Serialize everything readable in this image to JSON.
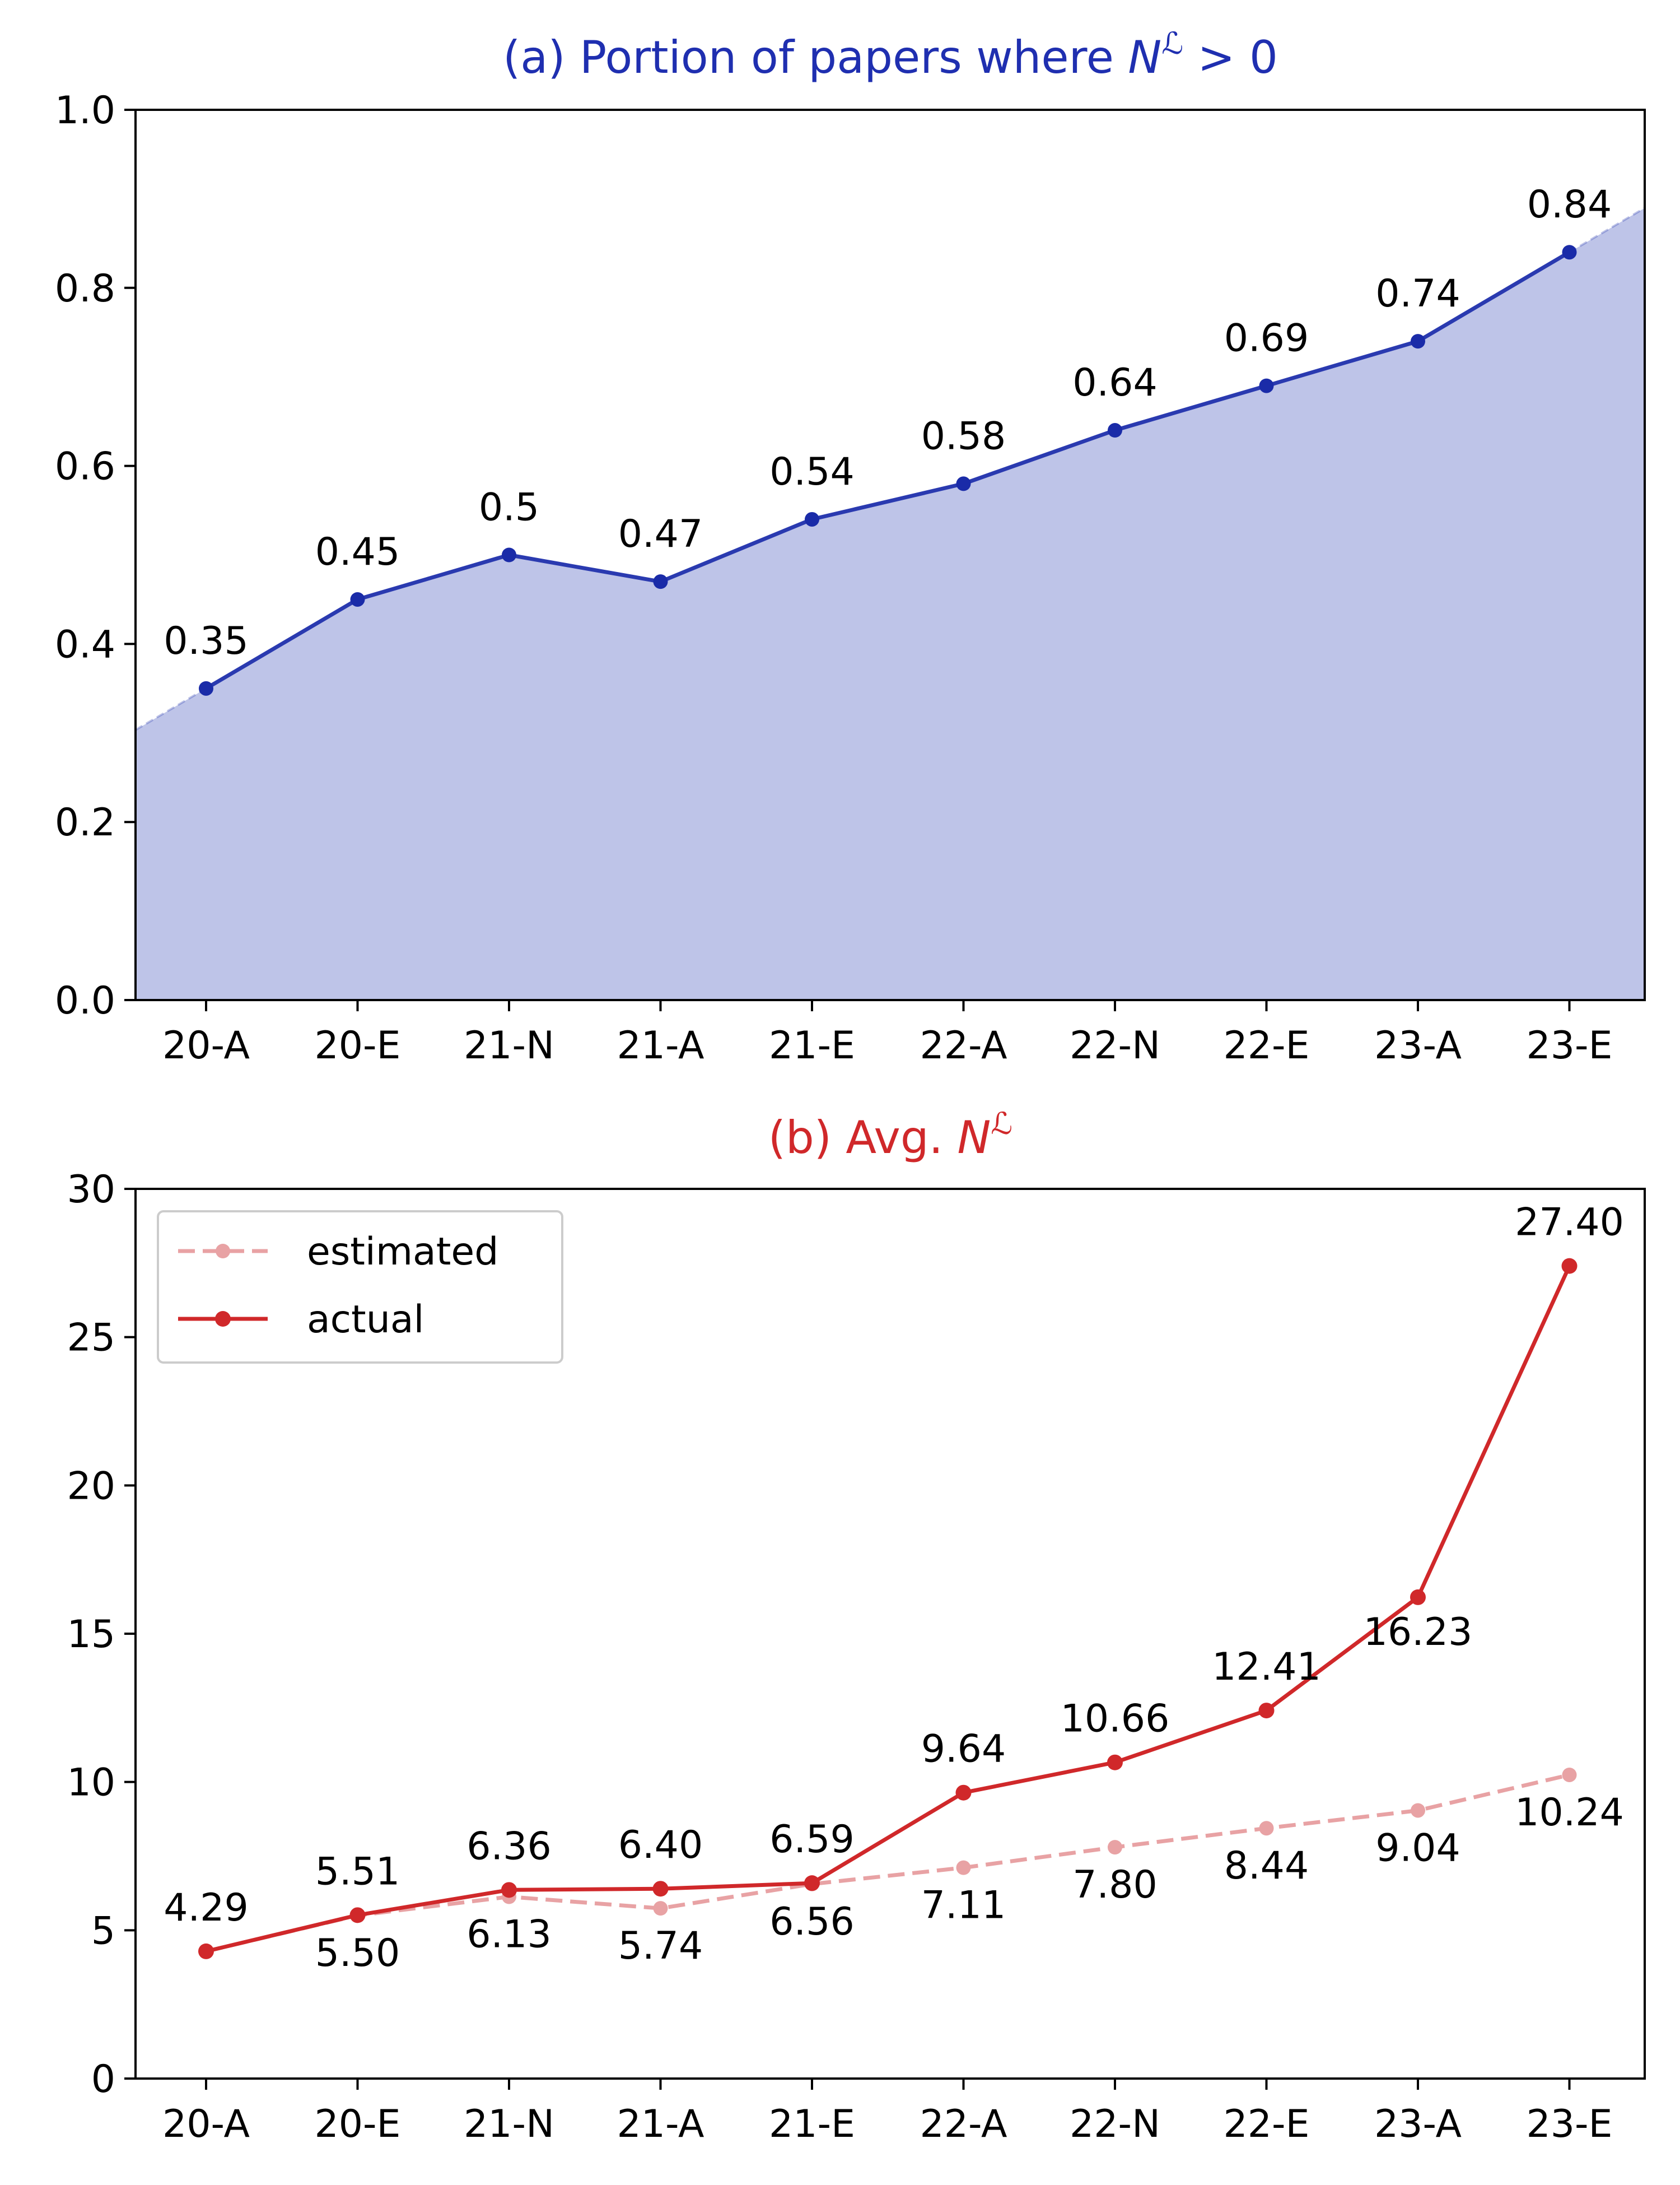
{
  "chart_data": [
    {
      "type": "area",
      "title": "(a) Portion of papers where ",
      "title_math": {
        "base": "N",
        "sup": "ℒ",
        "tail": " > 0"
      },
      "title_color": "#1f2fb0",
      "categories": [
        "20-A",
        "20-E",
        "21-N",
        "21-A",
        "21-E",
        "22-A",
        "22-N",
        "22-E",
        "23-A",
        "23-E"
      ],
      "values": [
        0.35,
        0.45,
        0.5,
        0.47,
        0.54,
        0.58,
        0.64,
        0.69,
        0.74,
        0.84
      ],
      "value_labels": [
        "0.35",
        "0.45",
        "0.5",
        "0.47",
        "0.54",
        "0.58",
        "0.64",
        "0.69",
        "0.74",
        "0.84"
      ],
      "ylim": [
        0,
        1.0
      ],
      "yticks": [
        0.0,
        0.2,
        0.4,
        0.6,
        0.8,
        1.0
      ],
      "ytick_labels": [
        "0.0",
        "0.2",
        "0.4",
        "0.6",
        "0.8",
        "1.0"
      ],
      "grid": false,
      "colors": {
        "line": "#2a3ab0",
        "fill": "#bec4e8",
        "marker": "#1a2ba8"
      }
    },
    {
      "type": "line",
      "title": "(b) Avg. ",
      "title_math": {
        "base": "N",
        "sup": "ℒ"
      },
      "title_color": "#d0282a",
      "categories": [
        "20-A",
        "20-E",
        "21-N",
        "21-A",
        "21-E",
        "22-A",
        "22-N",
        "22-E",
        "23-A",
        "23-E"
      ],
      "series": [
        {
          "name": "estimated",
          "values": [
            4.29,
            5.5,
            6.13,
            5.74,
            6.56,
            7.11,
            7.8,
            8.44,
            9.04,
            10.24
          ],
          "value_labels": [
            "",
            "5.50",
            "6.13",
            "5.74",
            "6.56",
            "7.11",
            "7.80",
            "8.44",
            "9.04",
            "10.24"
          ],
          "style": "dashed",
          "color": "#e8a2a4"
        },
        {
          "name": "actual",
          "values": [
            4.29,
            5.51,
            6.36,
            6.4,
            6.59,
            9.64,
            10.66,
            12.41,
            16.23,
            27.4
          ],
          "value_labels": [
            "4.29",
            "5.51",
            "6.36",
            "6.40",
            "6.59",
            "9.64",
            "10.66",
            "12.41",
            "16.23",
            "27.40"
          ],
          "style": "solid",
          "color": "#d0282a"
        }
      ],
      "ylim": [
        0,
        30
      ],
      "yticks": [
        0,
        5,
        10,
        15,
        20,
        25,
        30
      ],
      "ytick_labels": [
        "0",
        "5",
        "10",
        "15",
        "20",
        "25",
        "30"
      ],
      "legend": {
        "placement": "top-left",
        "entries": [
          "estimated",
          "actual"
        ]
      },
      "grid": false
    }
  ]
}
